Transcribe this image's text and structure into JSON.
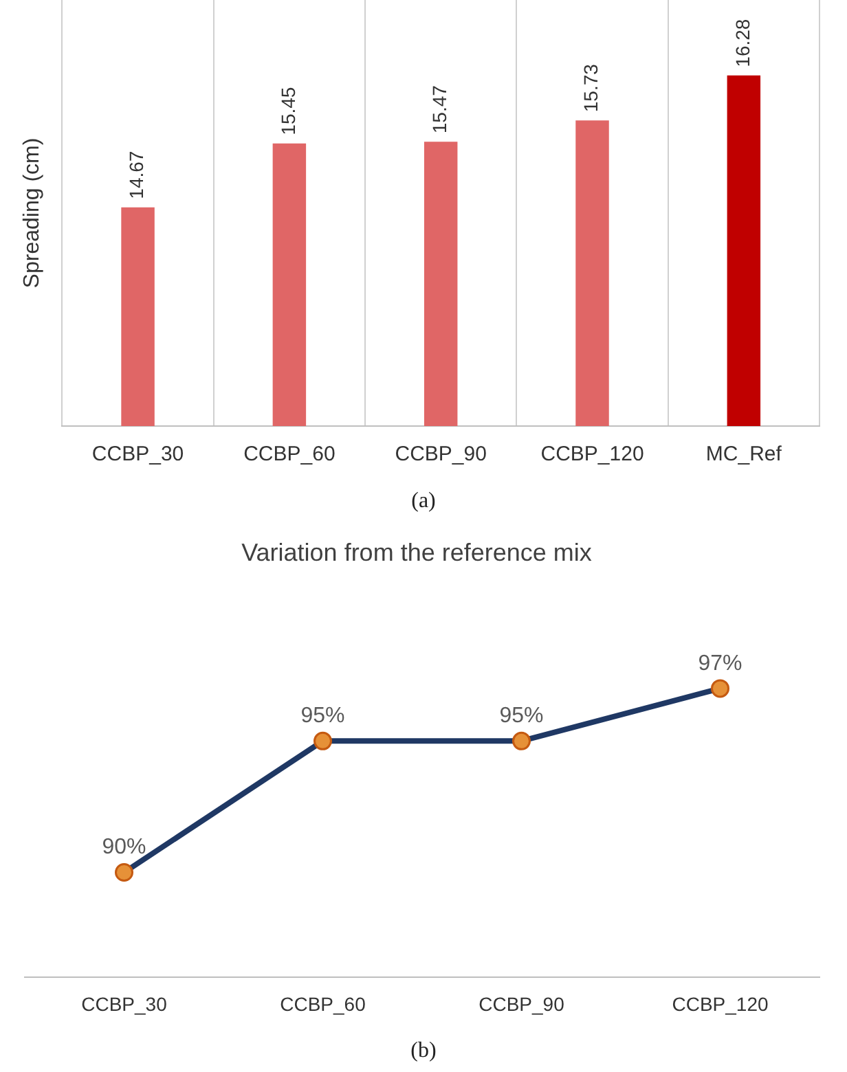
{
  "chart_data": [
    {
      "type": "bar",
      "ylabel": "Spreading (cm)",
      "categories": [
        "CCBP_30",
        "CCBP_60",
        "CCBP_90",
        "CCBP_120",
        "MC_Ref"
      ],
      "values": [
        14.67,
        15.45,
        15.47,
        15.73,
        16.28
      ],
      "colors": [
        "#e06666",
        "#e06666",
        "#e06666",
        "#e06666",
        "#c00000"
      ],
      "ylim": [
        12,
        17.2
      ],
      "tick_labels": "x",
      "grid": "x",
      "data_labels": true,
      "annotations": [
        "(a)"
      ]
    },
    {
      "type": "line",
      "title": "Variation from the reference mix",
      "categories": [
        "CCBP_30",
        "CCBP_60",
        "CCBP_90",
        "CCBP_120"
      ],
      "series": [
        {
          "color": "#1f3864",
          "values": [
            90,
            95,
            95,
            97
          ],
          "value_labels": [
            "90%",
            "95%",
            "95%",
            "97%"
          ]
        }
      ],
      "marker": "circle",
      "tick_labels": "x",
      "grid": false,
      "annotations": [
        "(b)"
      ]
    }
  ]
}
